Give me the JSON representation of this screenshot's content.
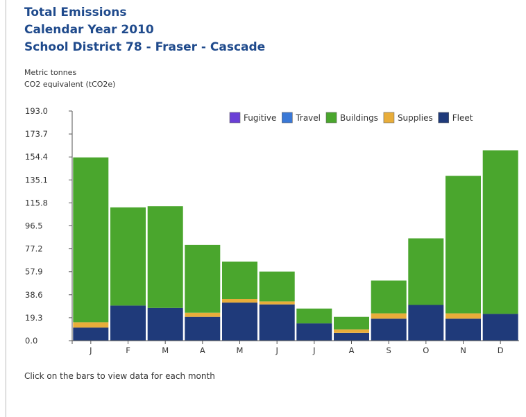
{
  "header": {
    "title_line1": "Total Emissions",
    "title_line2": "Calendar Year 2010",
    "title_line3": "School District 78 - Fraser - Cascade",
    "units_line1": "Metric tonnes",
    "units_line2": "CO2 equivalent (tCO2e)"
  },
  "footer": {
    "note": "Click on the bars to view data for each month"
  },
  "colors": {
    "Fugitive": "#6a3fd6",
    "Travel": "#3a78d6",
    "Buildings": "#4aa62d",
    "Supplies": "#e8ad3a",
    "Fleet": "#1f3a7a"
  },
  "chart_data": {
    "type": "bar",
    "stacked": true,
    "categories": [
      "J",
      "F",
      "M",
      "A",
      "M",
      "J",
      "J",
      "A",
      "S",
      "O",
      "N",
      "D"
    ],
    "ylim": [
      0,
      193.0
    ],
    "yticks": [
      "0.0",
      "19.3",
      "38.6",
      "57.9",
      "77.2",
      "96.5",
      "115.8",
      "135.1",
      "154.4",
      "173.7",
      "193.0"
    ],
    "legend_position": "top-right",
    "legend": [
      "Fugitive",
      "Travel",
      "Buildings",
      "Supplies",
      "Fleet"
    ],
    "series": [
      {
        "name": "Fleet",
        "values": [
          11.0,
          29.5,
          27.5,
          20.0,
          32.0,
          30.5,
          14.5,
          6.5,
          18.5,
          30.0,
          18.5,
          22.5
        ]
      },
      {
        "name": "Supplies",
        "values": [
          4.5,
          0,
          0,
          3.5,
          3.0,
          2.5,
          0,
          3.0,
          4.5,
          0,
          4.5,
          0
        ]
      },
      {
        "name": "Buildings",
        "values": [
          138.5,
          82.5,
          85.5,
          57.0,
          31.5,
          25.0,
          12.5,
          10.5,
          27.5,
          56.0,
          115.5,
          137.5
        ]
      },
      {
        "name": "Travel",
        "values": [
          0,
          0,
          0,
          0,
          0,
          0,
          0,
          0,
          0,
          0,
          0,
          0
        ]
      },
      {
        "name": "Fugitive",
        "values": [
          0,
          0,
          0,
          0,
          0,
          0,
          0,
          0,
          0,
          0,
          0,
          0
        ]
      }
    ]
  }
}
